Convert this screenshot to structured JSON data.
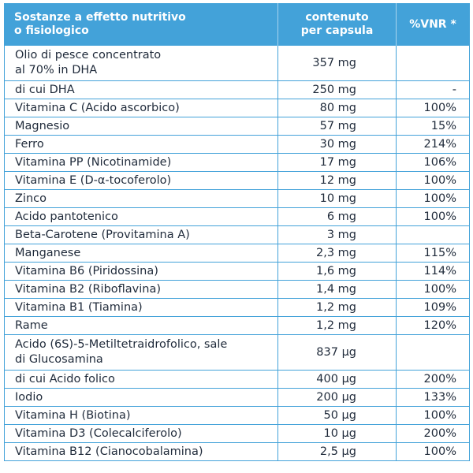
{
  "header": {
    "col1_line1": "Sostanze a effetto nutritivo",
    "col1_line2": "o fisiologico",
    "col2_line1": "contenuto",
    "col2_line2": "per capsula",
    "col3": "%VNR *"
  },
  "rows": [
    {
      "name": "Olio di pesce concentrato",
      "name2": "al 70% in DHA",
      "amount": "357 mg",
      "vnr": ""
    },
    {
      "name": "di cui DHA",
      "amount": "250 mg",
      "vnr": "-"
    },
    {
      "name": "Vitamina C (Acido ascorbico)",
      "amount": "80 mg",
      "vnr": "100%"
    },
    {
      "name": "Magnesio",
      "amount": "57 mg",
      "vnr": "15%"
    },
    {
      "name": "Ferro",
      "amount": "30 mg",
      "vnr": "214%"
    },
    {
      "name": "Vitamina PP (Nicotinamide)",
      "amount": "17 mg",
      "vnr": "106%"
    },
    {
      "name": "Vitamina E (D-α-tocoferolo)",
      "amount": "12 mg",
      "vnr": "100%"
    },
    {
      "name": "Zinco",
      "amount": "10 mg",
      "vnr": "100%"
    },
    {
      "name": "Acido pantotenico",
      "amount": "6 mg",
      "vnr": "100%"
    },
    {
      "name": "Beta-Carotene (Provitamina A)",
      "amount": "3 mg",
      "vnr": ""
    },
    {
      "name": "Manganese",
      "amount": "2,3 mg",
      "vnr": "115%"
    },
    {
      "name": "Vitamina B6 (Piridossina)",
      "amount": "1,6 mg",
      "vnr": "114%"
    },
    {
      "name": "Vitamina B2 (Riboflavina)",
      "amount": "1,4 mg",
      "vnr": "100%"
    },
    {
      "name": "Vitamina B1 (Tiamina)",
      "amount": "1,2 mg",
      "vnr": "109%"
    },
    {
      "name": "Rame",
      "amount": "1,2 mg",
      "vnr": "120%"
    },
    {
      "name": "Acido (6S)-5-Metiltetraidrofolico, sale",
      "name2": "di Glucosamina",
      "amount": "837 µg",
      "vnr": ""
    },
    {
      "name": "di cui Acido folico",
      "amount": "400 µg",
      "vnr": "200%"
    },
    {
      "name": "Iodio",
      "amount": "200 µg",
      "vnr": "133%"
    },
    {
      "name": "Vitamina H (Biotina)",
      "amount": "50 µg",
      "vnr": "100%"
    },
    {
      "name": "Vitamina D3 (Colecalciferolo)",
      "amount": "10 µg",
      "vnr": "200%"
    },
    {
      "name": "Vitamina B12 (Cianocobalamina)",
      "amount": "2,5 µg",
      "vnr": "100%"
    }
  ]
}
